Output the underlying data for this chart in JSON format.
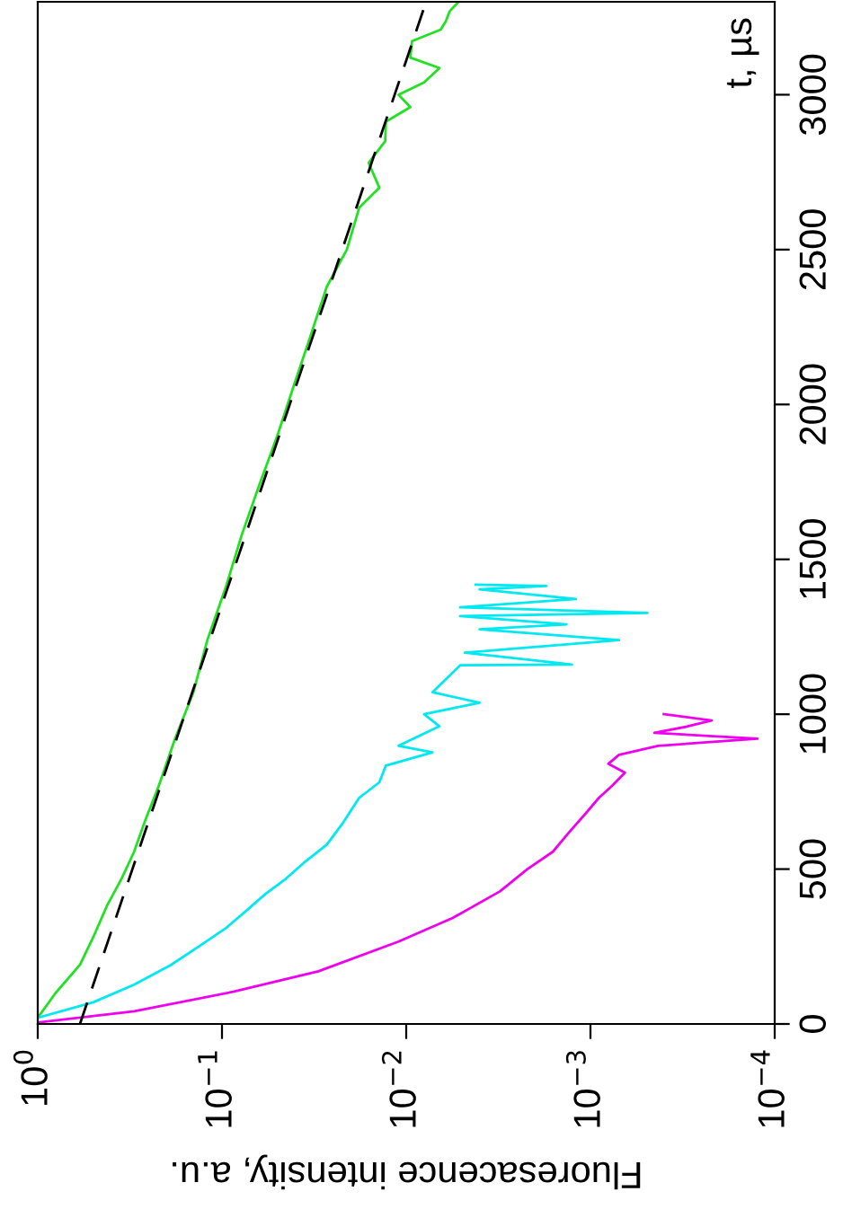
{
  "chart_data": {
    "type": "line",
    "xlabel": "Fluoresacence intensity, a.u.",
    "ylabel": "t, µs",
    "log": "x",
    "grid": false,
    "legend": false,
    "marker": "none",
    "ylim": [
      0,
      3300
    ],
    "yticks": [
      0,
      500,
      1000,
      1500,
      2000,
      2500,
      3000
    ],
    "xlim": [
      1,
      0.0001
    ],
    "xticks": [
      {
        "value": 1,
        "label": "10$^{0}$"
      },
      {
        "value": 0.1,
        "label": "10$^{−1}$"
      },
      {
        "value": 0.01,
        "label": "10$^{−2}$"
      },
      {
        "value": 0.001,
        "label": "10$^{−3}$"
      },
      {
        "value": 0.0001,
        "label": "10$^{−4}$"
      }
    ],
    "series": [
      {
        "color": "#22e022",
        "line_style": "solid",
        "values": [
          20,
          100,
          191,
          280,
          383,
          470,
          556,
          660,
          770,
          920,
          1071,
          1240,
          1413,
          1580,
          1737,
          1900,
          2056,
          2200,
          2380,
          2500,
          2635,
          2700,
          2780,
          2850,
          2913,
          2960,
          3000,
          3040,
          3086,
          3120,
          3173,
          3210,
          3237,
          3270,
          3300
        ],
        "x": [
          1.0,
          0.8,
          0.59,
          0.5,
          0.42,
          0.35,
          0.3,
          0.26,
          0.22,
          0.18,
          0.143,
          0.12,
          0.095,
          0.078,
          0.063,
          0.05,
          0.041,
          0.034,
          0.027,
          0.021,
          0.018,
          0.014,
          0.016,
          0.013,
          0.0129,
          0.0095,
          0.011,
          0.008,
          0.0066,
          0.0095,
          0.0093,
          0.0065,
          0.0061,
          0.0058,
          0.0052
        ]
      },
      {
        "color": "#00e8f0",
        "line_style": "solid",
        "values": [
          20,
          70,
          127,
          190,
          255,
          310,
          365,
          420,
          469,
          520,
          579,
          650,
          730,
          780,
          834,
          877,
          898,
          961,
          1000,
          1037,
          1071,
          1158,
          1160,
          1199,
          1239,
          1274,
          1290,
          1317,
          1327,
          1345,
          1372,
          1403,
          1414,
          1418
        ],
        "x": [
          1.0,
          0.5,
          0.3,
          0.19,
          0.13,
          0.095,
          0.074,
          0.058,
          0.045,
          0.036,
          0.027,
          0.022,
          0.018,
          0.014,
          0.0129,
          0.0072,
          0.011,
          0.0066,
          0.008,
          0.004,
          0.0072,
          0.0051,
          0.00126,
          0.0048,
          0.0007,
          0.004,
          0.00135,
          0.0051,
          0.00049,
          0.0051,
          0.0012,
          0.004,
          0.00174,
          0.0042
        ]
      },
      {
        "color": "#ee00ee",
        "line_style": "solid",
        "values": [
          5,
          41,
          104,
          170,
          266,
          342,
          428,
          500,
          556,
          620,
          683,
          730,
          770,
          811,
          840,
          869,
          898,
          921,
          940,
          960,
          980,
          1000
        ],
        "x": [
          1.0,
          0.3,
          0.087,
          0.03,
          0.011,
          0.0056,
          0.0031,
          0.0022,
          0.0016,
          0.0013,
          0.00105,
          0.0009,
          0.00076,
          0.00065,
          0.0008,
          0.0007,
          0.00043,
          0.000124,
          0.00045,
          0.0003,
          0.00022,
          0.0004
        ]
      },
      {
        "color": "#000000",
        "line_style": "dashed",
        "values": [
          0,
          3300
        ],
        "x": [
          0.59,
          0.0078
        ]
      }
    ]
  }
}
